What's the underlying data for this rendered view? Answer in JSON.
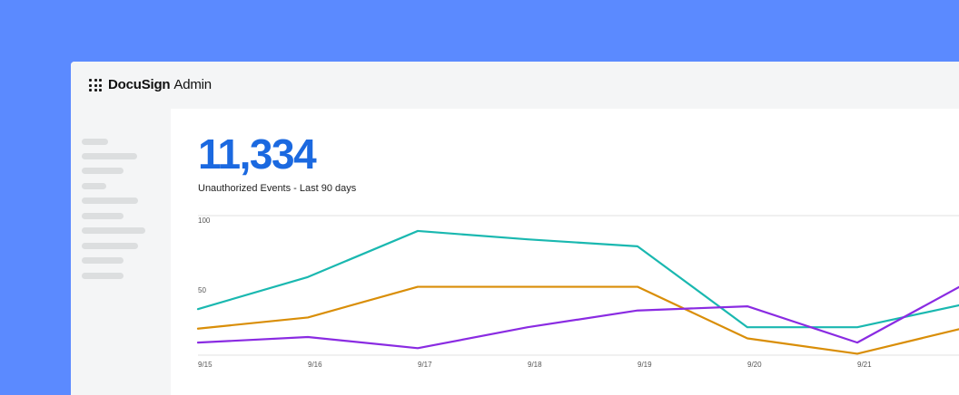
{
  "app": {
    "brand_bold": "DocuSign",
    "brand_rest": "Admin",
    "launcher_icon": "grid-icon"
  },
  "metric": {
    "value": "11,334",
    "label": "Unauthorized Events - Last 90 days"
  },
  "colors": {
    "background": "#5b8aff",
    "accent": "#1b69e0",
    "series_teal": "#1ab8b0",
    "series_orange": "#d98e08",
    "series_purple": "#8a2be2"
  },
  "chart_data": {
    "type": "line",
    "categories": [
      "9/15",
      "9/16",
      "9/17",
      "9/18",
      "9/19",
      "9/20",
      "9/21",
      ""
    ],
    "y_ticks": [
      "100",
      "50"
    ],
    "ylim": [
      0,
      100
    ],
    "grid": true,
    "series": [
      {
        "color": "#1ab8b0",
        "values": [
          33,
          56,
          89,
          83,
          78,
          20,
          20,
          37
        ]
      },
      {
        "color": "#d98e08",
        "values": [
          19,
          27,
          49,
          49,
          49,
          12,
          1,
          20
        ]
      },
      {
        "color": "#8a2be2",
        "values": [
          9,
          13,
          5,
          20,
          32,
          35,
          9,
          52
        ]
      }
    ]
  }
}
